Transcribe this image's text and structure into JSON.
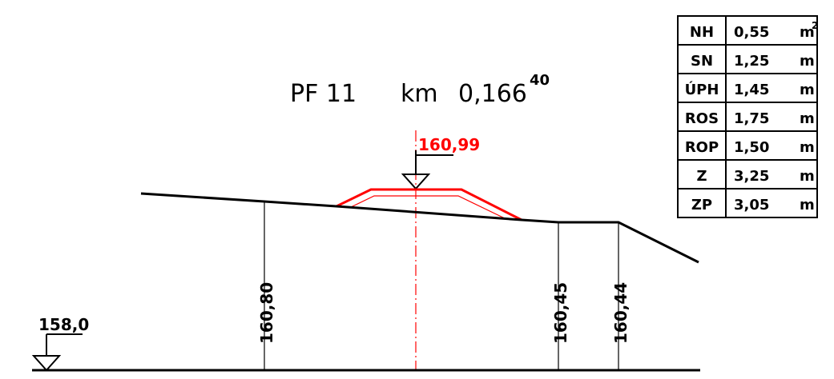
{
  "title": {
    "profile": "PF 11",
    "km_label": "km",
    "station": "0,166",
    "station_plus": "40"
  },
  "axis_level": "160,99",
  "datum_level": "158,0",
  "terrain_levels": [
    "160,80",
    "160,45",
    "160,44"
  ],
  "table": [
    {
      "code": "NH",
      "value": "0,55",
      "unit": "m",
      "unit_sup": "2"
    },
    {
      "code": "SN",
      "value": "1,25",
      "unit": "m",
      "unit_sup": ""
    },
    {
      "code": "ÚPH",
      "value": "1,45",
      "unit": "m",
      "unit_sup": ""
    },
    {
      "code": "ROS",
      "value": "1,75",
      "unit": "m",
      "unit_sup": ""
    },
    {
      "code": "ROP",
      "value": "1,50",
      "unit": "m",
      "unit_sup": ""
    },
    {
      "code": "Z",
      "value": "3,25",
      "unit": "m",
      "unit_sup": ""
    },
    {
      "code": "ZP",
      "value": "3,05",
      "unit": "m",
      "unit_sup": ""
    }
  ],
  "colors": {
    "line": "#000000",
    "design": "#ff0000"
  }
}
